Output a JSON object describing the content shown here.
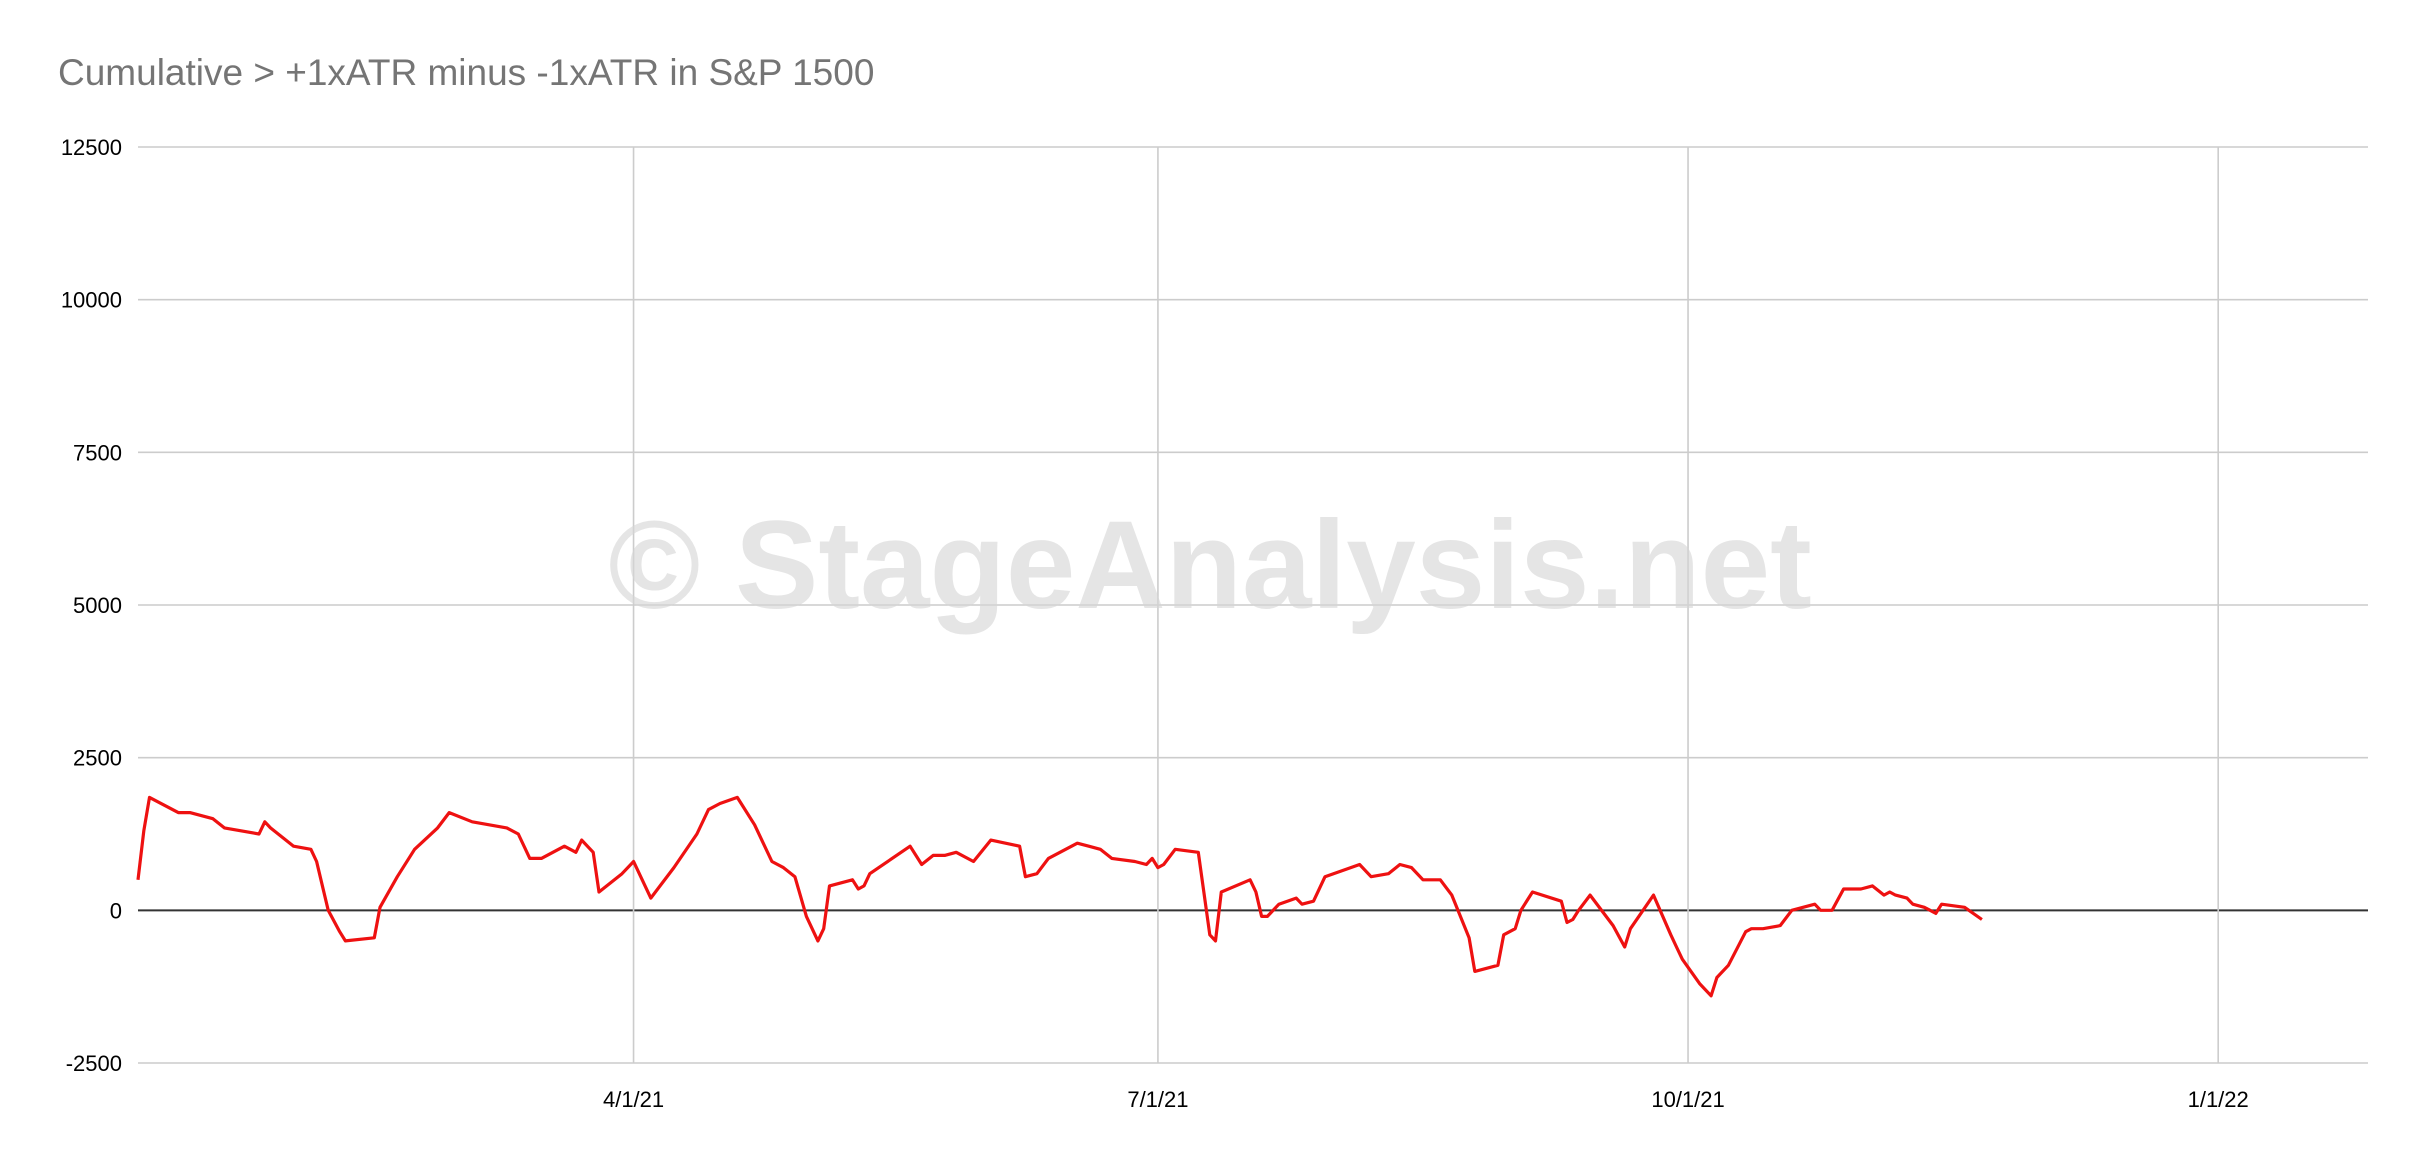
{
  "chart_data": {
    "type": "line",
    "title": "Cumulative > +1xATR minus -1xATR in S&P 1500",
    "watermark": "© StageAnalysis.net",
    "xlabel": "",
    "ylabel": "",
    "ylim": [
      -2500,
      12500
    ],
    "yticks": [
      12500,
      10000,
      7500,
      5000,
      2500,
      0,
      -2500
    ],
    "xlim": [
      "2021-01-05",
      "2022-01-27"
    ],
    "xticks": [
      {
        "date": "2021-04-01",
        "label": "4/1/21"
      },
      {
        "date": "2021-07-01",
        "label": "7/1/21"
      },
      {
        "date": "2021-10-01",
        "label": "10/1/21"
      },
      {
        "date": "2022-01-01",
        "label": "1/1/22"
      }
    ],
    "grid": true,
    "legend": "none",
    "series": [
      {
        "color": "#ee1111",
        "style": "solid",
        "points": [
          [
            "2021-01-05",
            500
          ],
          [
            "2021-01-06",
            1300
          ],
          [
            "2021-01-07",
            1850
          ],
          [
            "2021-01-12",
            1600
          ],
          [
            "2021-01-14",
            1600
          ],
          [
            "2021-01-18",
            1500
          ],
          [
            "2021-01-20",
            1350
          ],
          [
            "2021-01-26",
            1250
          ],
          [
            "2021-01-27",
            1450
          ],
          [
            "2021-01-28",
            1350
          ],
          [
            "2021-02-01",
            1050
          ],
          [
            "2021-02-04",
            1000
          ],
          [
            "2021-02-05",
            800
          ],
          [
            "2021-02-07",
            0
          ],
          [
            "2021-02-09",
            -350
          ],
          [
            "2021-02-10",
            -500
          ],
          [
            "2021-02-15",
            -450
          ],
          [
            "2021-02-16",
            50
          ],
          [
            "2021-02-19",
            550
          ],
          [
            "2021-02-22",
            1000
          ],
          [
            "2021-02-26",
            1350
          ],
          [
            "2021-02-28",
            1600
          ],
          [
            "2021-03-04",
            1450
          ],
          [
            "2021-03-10",
            1350
          ],
          [
            "2021-03-12",
            1250
          ],
          [
            "2021-03-14",
            850
          ],
          [
            "2021-03-16",
            850
          ],
          [
            "2021-03-20",
            1050
          ],
          [
            "2021-03-22",
            950
          ],
          [
            "2021-03-23",
            1150
          ],
          [
            "2021-03-25",
            950
          ],
          [
            "2021-03-26",
            300
          ],
          [
            "2021-03-30",
            600
          ],
          [
            "2021-04-01",
            800
          ],
          [
            "2021-04-04",
            200
          ],
          [
            "2021-04-08",
            700
          ],
          [
            "2021-04-12",
            1250
          ],
          [
            "2021-04-14",
            1650
          ],
          [
            "2021-04-16",
            1750
          ],
          [
            "2021-04-19",
            1850
          ],
          [
            "2021-04-22",
            1400
          ],
          [
            "2021-04-25",
            800
          ],
          [
            "2021-04-27",
            700
          ],
          [
            "2021-04-29",
            550
          ],
          [
            "2021-05-01",
            -100
          ],
          [
            "2021-05-03",
            -500
          ],
          [
            "2021-05-04",
            -300
          ],
          [
            "2021-05-05",
            400
          ],
          [
            "2021-05-09",
            500
          ],
          [
            "2021-05-10",
            350
          ],
          [
            "2021-05-11",
            400
          ],
          [
            "2021-05-12",
            600
          ],
          [
            "2021-05-19",
            1050
          ],
          [
            "2021-05-21",
            750
          ],
          [
            "2021-05-23",
            900
          ],
          [
            "2021-05-25",
            900
          ],
          [
            "2021-05-27",
            950
          ],
          [
            "2021-05-30",
            800
          ],
          [
            "2021-06-02",
            1150
          ],
          [
            "2021-06-07",
            1050
          ],
          [
            "2021-06-08",
            550
          ],
          [
            "2021-06-10",
            600
          ],
          [
            "2021-06-12",
            850
          ],
          [
            "2021-06-17",
            1100
          ],
          [
            "2021-06-19",
            1050
          ],
          [
            "2021-06-21",
            1000
          ],
          [
            "2021-06-23",
            850
          ],
          [
            "2021-06-27",
            800
          ],
          [
            "2021-06-29",
            750
          ],
          [
            "2021-06-30",
            850
          ],
          [
            "2021-07-01",
            700
          ],
          [
            "2021-07-02",
            750
          ],
          [
            "2021-07-04",
            1000
          ],
          [
            "2021-07-08",
            950
          ],
          [
            "2021-07-10",
            -400
          ],
          [
            "2021-07-11",
            -500
          ],
          [
            "2021-07-12",
            300
          ],
          [
            "2021-07-17",
            500
          ],
          [
            "2021-07-18",
            300
          ],
          [
            "2021-07-19",
            -100
          ],
          [
            "2021-07-20",
            -100
          ],
          [
            "2021-07-22",
            100
          ],
          [
            "2021-07-25",
            200
          ],
          [
            "2021-07-26",
            100
          ],
          [
            "2021-07-28",
            150
          ],
          [
            "2021-07-30",
            550
          ],
          [
            "2021-08-05",
            750
          ],
          [
            "2021-08-07",
            550
          ],
          [
            "2021-08-10",
            600
          ],
          [
            "2021-08-12",
            750
          ],
          [
            "2021-08-14",
            700
          ],
          [
            "2021-08-16",
            500
          ],
          [
            "2021-08-19",
            500
          ],
          [
            "2021-08-21",
            250
          ],
          [
            "2021-08-24",
            -450
          ],
          [
            "2021-08-25",
            -1000
          ],
          [
            "2021-08-29",
            -900
          ],
          [
            "2021-08-30",
            -400
          ],
          [
            "2021-09-01",
            -300
          ],
          [
            "2021-09-02",
            0
          ],
          [
            "2021-09-04",
            300
          ],
          [
            "2021-09-09",
            150
          ],
          [
            "2021-09-10",
            -200
          ],
          [
            "2021-09-11",
            -150
          ],
          [
            "2021-09-12",
            0
          ],
          [
            "2021-09-14",
            250
          ],
          [
            "2021-09-18",
            -250
          ],
          [
            "2021-09-20",
            -600
          ],
          [
            "2021-09-21",
            -300
          ],
          [
            "2021-09-25",
            250
          ],
          [
            "2021-09-28",
            -400
          ],
          [
            "2021-09-29",
            -600
          ],
          [
            "2021-09-30",
            -800
          ],
          [
            "2021-10-03",
            -1200
          ],
          [
            "2021-10-05",
            -1400
          ],
          [
            "2021-10-06",
            -1100
          ],
          [
            "2021-10-08",
            -900
          ],
          [
            "2021-10-11",
            -350
          ],
          [
            "2021-10-12",
            -300
          ],
          [
            "2021-10-14",
            -300
          ],
          [
            "2021-10-17",
            -250
          ],
          [
            "2021-10-19",
            0
          ],
          [
            "2021-10-23",
            100
          ],
          [
            "2021-10-24",
            0
          ],
          [
            "2021-10-26",
            0
          ],
          [
            "2021-10-28",
            350
          ],
          [
            "2021-10-31",
            350
          ],
          [
            "2021-11-02",
            400
          ],
          [
            "2021-11-04",
            250
          ],
          [
            "2021-11-05",
            300
          ],
          [
            "2021-11-06",
            250
          ],
          [
            "2021-11-08",
            200
          ],
          [
            "2021-11-09",
            100
          ],
          [
            "2021-11-11",
            50
          ],
          [
            "2021-11-12",
            0
          ],
          [
            "2021-11-13",
            -50
          ],
          [
            "2021-11-14",
            100
          ],
          [
            "2021-11-18",
            50
          ],
          [
            "2021-11-21",
            -150
          ]
        ]
      },
      {
        "color": "#999999",
        "style": "dotted",
        "points": []
      }
    ]
  }
}
